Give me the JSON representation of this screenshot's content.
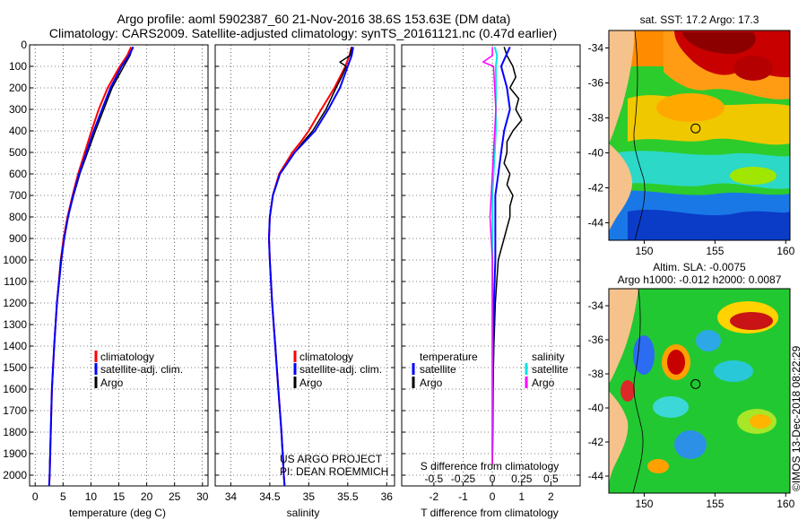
{
  "header": {
    "line1": "Argo profile: aoml 5902387_60 21-Nov-2016 38.6S 153.63E (DM data)",
    "line2": "Climatology: CARS2009. Satellite-adjusted climatology: synTS_20161121.nc (0.47d earlier)"
  },
  "colors": {
    "climatology": "#ff0000",
    "satellite": "#0000ff",
    "argo": "#000000",
    "sat_salinity": "#00e5e5",
    "argo_salinity": "#ff00ff",
    "land": "#f5c28c"
  },
  "attribution": {
    "project": "US ARGO PROJECT",
    "pi": "PI: DEAN ROEMMICH",
    "imos": "©IMOS 13-Dec-2018 08:22:29"
  },
  "chart_data": [
    {
      "id": "temperature",
      "type": "line",
      "xlabel": "temperature (deg C)",
      "ylabel": "",
      "xlim": [
        -1,
        31
      ],
      "ylim": [
        2050,
        0
      ],
      "x_ticks": [
        "0",
        "5",
        "10",
        "15",
        "20",
        "25",
        "30"
      ],
      "x_tick_values": [
        0,
        5,
        10,
        15,
        20,
        25,
        30
      ],
      "y_ticks": [
        "0",
        "100",
        "200",
        "300",
        "400",
        "500",
        "600",
        "700",
        "800",
        "900",
        "1000",
        "1100",
        "1200",
        "1300",
        "1400",
        "1500",
        "1600",
        "1700",
        "1800",
        "1900",
        "2000"
      ],
      "y_tick_values": [
        0,
        100,
        200,
        300,
        400,
        500,
        600,
        700,
        800,
        900,
        1000,
        1100,
        1200,
        1300,
        1400,
        1500,
        1600,
        1700,
        1800,
        1900,
        2000
      ],
      "legend": [
        "climatology",
        "satellite-adj. clim.",
        "Argo"
      ],
      "series": [
        {
          "name": "climatology",
          "depth": [
            10,
            50,
            100,
            200,
            300,
            400,
            500,
            600,
            700,
            800,
            900,
            1000,
            1200,
            1400,
            1600,
            1800,
            2000,
            2050
          ],
          "values": [
            17.2,
            16.5,
            15.2,
            13.0,
            11.4,
            10.1,
            8.9,
            7.7,
            6.7,
            5.8,
            5.1,
            4.6,
            3.9,
            3.4,
            3.0,
            2.8,
            2.6,
            2.5
          ]
        },
        {
          "name": "satellite-adj. clim.",
          "depth": [
            10,
            50,
            100,
            200,
            300,
            400,
            500,
            600,
            700,
            800,
            900,
            1000,
            1200,
            1400,
            1600,
            1800,
            2000,
            2050
          ],
          "values": [
            17.6,
            16.8,
            15.5,
            13.5,
            12.0,
            10.5,
            9.2,
            7.9,
            6.8,
            5.9,
            5.2,
            4.7,
            3.9,
            3.4,
            3.0,
            2.8,
            2.6,
            2.5
          ]
        },
        {
          "name": "Argo",
          "depth": [
            10,
            50,
            100,
            200,
            300,
            400,
            500,
            600,
            700,
            800,
            900,
            1000,
            1200,
            1400,
            1600,
            1800,
            1950
          ],
          "values": [
            17.5,
            17.0,
            15.9,
            13.8,
            12.3,
            10.8,
            9.4,
            8.0,
            6.9,
            5.9,
            5.2,
            4.6,
            3.9,
            3.4,
            3.0,
            2.8,
            2.6
          ]
        }
      ]
    },
    {
      "id": "salinity",
      "type": "line",
      "xlabel": "salinity",
      "ylabel": "",
      "xlim": [
        33.8,
        36.1
      ],
      "ylim": [
        2050,
        0
      ],
      "x_ticks": [
        "34",
        "34.5",
        "35",
        "35.5",
        "36"
      ],
      "x_tick_values": [
        34,
        34.5,
        35,
        35.5,
        36
      ],
      "legend": [
        "climatology",
        "satellite-adj. clim.",
        "Argo"
      ],
      "series": [
        {
          "name": "climatology",
          "depth": [
            10,
            50,
            100,
            200,
            300,
            400,
            450,
            500,
            600,
            700,
            800,
            900,
            1000,
            1200,
            1400,
            1600,
            1800,
            2000,
            2050
          ],
          "values": [
            35.55,
            35.52,
            35.47,
            35.33,
            35.16,
            35.0,
            34.9,
            34.79,
            34.62,
            34.54,
            34.5,
            34.49,
            34.5,
            34.53,
            34.57,
            34.61,
            34.65,
            34.68,
            34.69
          ]
        },
        {
          "name": "satellite-adj. clim.",
          "depth": [
            10,
            50,
            100,
            200,
            300,
            400,
            450,
            500,
            600,
            700,
            800,
            900,
            1000,
            1200,
            1400,
            1600,
            1800,
            2000,
            2050
          ],
          "values": [
            35.57,
            35.55,
            35.5,
            35.4,
            35.25,
            35.08,
            34.95,
            34.82,
            34.63,
            34.54,
            34.5,
            34.49,
            34.5,
            34.53,
            34.57,
            34.61,
            34.65,
            34.68,
            34.69
          ]
        },
        {
          "name": "Argo",
          "depth": [
            10,
            50,
            80,
            100,
            150,
            200,
            300,
            400,
            450,
            500,
            600,
            700,
            800,
            900,
            1000,
            1200,
            1400,
            1600,
            1800,
            1950
          ],
          "values": [
            35.55,
            35.53,
            35.4,
            35.48,
            35.42,
            35.35,
            35.22,
            35.05,
            34.93,
            34.82,
            34.63,
            34.54,
            34.5,
            34.49,
            34.5,
            34.53,
            34.57,
            34.61,
            34.65,
            34.68
          ]
        }
      ]
    },
    {
      "id": "difference",
      "type": "line",
      "xlabel": "T difference from climatology",
      "ylabel": "",
      "xlim": [
        -3.1,
        3.0
      ],
      "ylim": [
        2050,
        0
      ],
      "x_ticks": [
        "-2",
        "-1",
        "0",
        "1",
        "2"
      ],
      "x_tick_values": [
        -2,
        -1,
        0,
        1,
        2
      ],
      "secondary_axis_label": "S difference from climatology",
      "secondary_x_ticks": [
        "-0.5",
        "-0.25",
        "0",
        "0.25",
        "0.5"
      ],
      "secondary_x_tick_values": [
        -0.5,
        -0.25,
        0,
        0.25,
        0.5
      ],
      "legend_left_title": "temperature",
      "legend_left": [
        "satellite",
        "Argo"
      ],
      "legend_right_title": "salinity",
      "legend_right": [
        "satellite",
        "Argo"
      ],
      "series": [
        {
          "name": "T satellite",
          "axis": "T",
          "depth": [
            10,
            100,
            200,
            300,
            400,
            500,
            600,
            700,
            800,
            900,
            1000,
            1200,
            1400,
            1600,
            1800,
            1900
          ],
          "values": [
            0.6,
            0.3,
            0.5,
            0.6,
            0.4,
            0.3,
            0.2,
            0.1,
            0.1,
            0.1,
            0.1,
            0.05,
            0.03,
            0.02,
            0.01,
            0.0
          ]
        },
        {
          "name": "T Argo",
          "axis": "T",
          "depth": [
            10,
            50,
            100,
            150,
            200,
            250,
            300,
            350,
            400,
            450,
            500,
            550,
            600,
            650,
            700,
            750,
            800,
            850,
            900,
            950,
            1000,
            1100,
            1200,
            1400,
            1600,
            1800,
            1950
          ],
          "values": [
            0.4,
            0.5,
            0.7,
            0.8,
            0.6,
            0.9,
            0.8,
            1.0,
            0.7,
            0.5,
            0.5,
            0.4,
            0.6,
            0.5,
            0.7,
            0.6,
            0.6,
            0.5,
            0.4,
            0.3,
            0.2,
            0.15,
            0.1,
            0.05,
            0.02,
            0.0,
            0.0
          ]
        },
        {
          "name": "S satellite",
          "axis": "S",
          "depth": [
            10,
            50,
            100,
            200,
            300,
            400,
            500,
            600,
            700,
            800,
            900,
            1000,
            1200,
            1400,
            1600,
            1800,
            1900
          ],
          "values": [
            0.02,
            0.04,
            0.03,
            0.03,
            0.03,
            0.03,
            0.02,
            0.01,
            0.0,
            0.0,
            0.0,
            0.0,
            0.0,
            0.0,
            0.0,
            0.0,
            0.0
          ]
        },
        {
          "name": "S Argo",
          "axis": "S",
          "depth": [
            10,
            50,
            80,
            100,
            200,
            300,
            400,
            500,
            600,
            700,
            800,
            900,
            1000,
            1200,
            1400,
            1600,
            1800,
            1950
          ],
          "values": [
            0.0,
            0.0,
            -0.08,
            0.01,
            0.02,
            0.03,
            0.02,
            0.01,
            0.0,
            -0.01,
            -0.02,
            -0.01,
            0.0,
            0.0,
            0.0,
            0.0,
            0.0,
            0.0
          ]
        }
      ]
    },
    {
      "id": "sst-map",
      "type": "heatmap",
      "title": "sat. SST: 17.2  Argo: 17.3",
      "x_ticks": [
        "150",
        "155",
        "160"
      ],
      "x_tick_values": [
        150,
        155,
        160
      ],
      "y_ticks": [
        "-34",
        "-36",
        "-38",
        "-40",
        "-42",
        "-44"
      ],
      "y_tick_values": [
        -34,
        -36,
        -38,
        -40,
        -42,
        -44
      ],
      "xlim": [
        147.5,
        160.3
      ],
      "ylim": [
        -45.0,
        -33.0
      ],
      "marker": {
        "lon": 153.63,
        "lat": -38.6
      }
    },
    {
      "id": "sla-map",
      "type": "heatmap",
      "title": "Altim. SLA: -0.0075",
      "subtitle": "Argo h1000: -0.012 h2000: 0.0087",
      "x_ticks": [
        "150",
        "155",
        "160"
      ],
      "x_tick_values": [
        150,
        155,
        160
      ],
      "y_ticks": [
        "-34",
        "-36",
        "-38",
        "-40",
        "-42",
        "-44"
      ],
      "y_tick_values": [
        -34,
        -36,
        -38,
        -40,
        -42,
        -44
      ],
      "xlim": [
        147.5,
        160.3
      ],
      "ylim": [
        -45.0,
        -33.0
      ],
      "marker": {
        "lon": 153.63,
        "lat": -38.6
      }
    }
  ]
}
